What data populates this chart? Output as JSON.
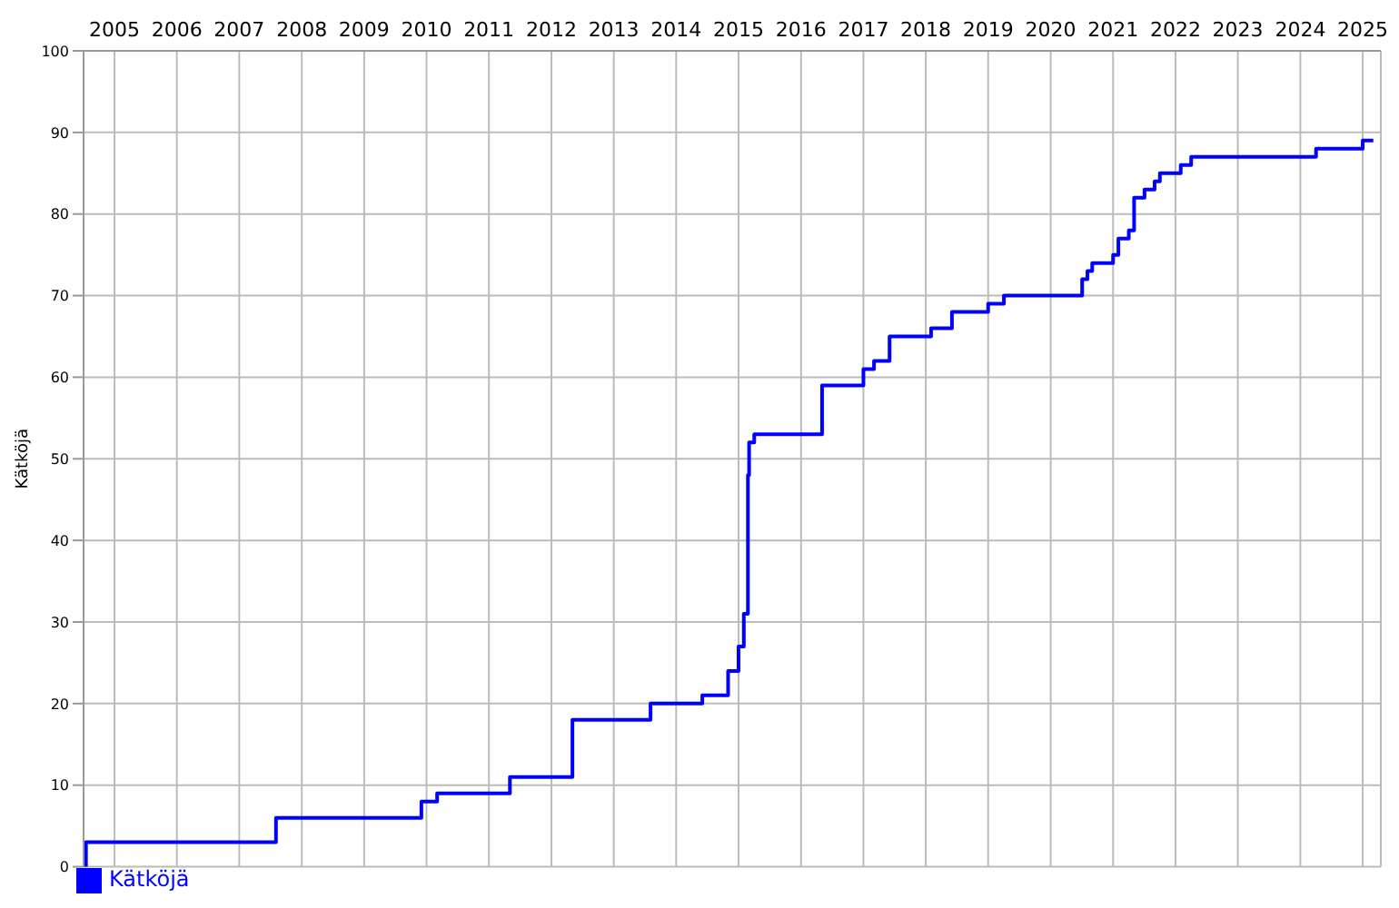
{
  "chart_data": {
    "type": "step",
    "ylabel": "Kätköjä",
    "x": [
      "2005-01-01",
      "2005-01-15",
      "2007-11-01",
      "2008-02-01",
      "2010-04-01",
      "2010-06-01",
      "2010-09-01",
      "2011-09-01",
      "2011-11-01",
      "2012-09-01",
      "2012-11-01",
      "2013-12-01",
      "2014-02-01",
      "2014-11-01",
      "2014-12-01",
      "2015-04-01",
      "2015-05-01",
      "2015-07-01",
      "2015-08-01",
      "2015-08-25",
      "2015-09-01",
      "2015-10-01",
      "2016-07-01",
      "2016-11-01",
      "2017-06-01",
      "2017-07-01",
      "2017-09-01",
      "2017-12-01",
      "2018-07-01",
      "2018-08-01",
      "2018-11-01",
      "2018-12-01",
      "2019-06-01",
      "2019-07-01",
      "2019-10-01",
      "2020-12-01",
      "2021-01-01",
      "2021-02-01",
      "2021-03-01",
      "2021-06-01",
      "2021-07-01",
      "2021-08-01",
      "2021-10-01",
      "2021-11-01",
      "2022-01-01",
      "2022-03-01",
      "2022-04-01",
      "2022-07-01",
      "2022-08-01",
      "2022-10-01",
      "2024-09-01",
      "2024-10-01",
      "2025-06-01",
      "2025-07-01",
      "2025-09-01"
    ],
    "series": [
      {
        "name": "Kätköjä",
        "color": "#0000ff",
        "values": [
          0,
          3,
          3,
          6,
          6,
          8,
          9,
          9,
          11,
          11,
          18,
          18,
          20,
          20,
          21,
          21,
          24,
          27,
          31,
          48,
          52,
          53,
          53,
          59,
          59,
          61,
          62,
          65,
          65,
          66,
          66,
          68,
          68,
          69,
          70,
          70,
          72,
          73,
          74,
          74,
          75,
          77,
          78,
          82,
          83,
          84,
          85,
          85,
          86,
          87,
          87,
          88,
          88,
          89,
          89
        ]
      }
    ],
    "xlim": [
      "2005-01-01",
      "2025-10-15"
    ],
    "xticks": [
      {
        "value": "2005-07-01",
        "label": "2005"
      },
      {
        "value": "2006-07-01",
        "label": "2006"
      },
      {
        "value": "2007-07-01",
        "label": "2007"
      },
      {
        "value": "2008-07-01",
        "label": "2008"
      },
      {
        "value": "2009-07-01",
        "label": "2009"
      },
      {
        "value": "2010-07-01",
        "label": "2010"
      },
      {
        "value": "2011-07-01",
        "label": "2011"
      },
      {
        "value": "2012-07-01",
        "label": "2012"
      },
      {
        "value": "2013-07-01",
        "label": "2013"
      },
      {
        "value": "2014-07-01",
        "label": "2014"
      },
      {
        "value": "2015-07-01",
        "label": "2015"
      },
      {
        "value": "2016-07-01",
        "label": "2016"
      },
      {
        "value": "2017-07-01",
        "label": "2017"
      },
      {
        "value": "2018-07-01",
        "label": "2018"
      },
      {
        "value": "2019-07-01",
        "label": "2019"
      },
      {
        "value": "2020-07-01",
        "label": "2020"
      },
      {
        "value": "2021-07-01",
        "label": "2021"
      },
      {
        "value": "2022-07-01",
        "label": "2022"
      },
      {
        "value": "2023-07-01",
        "label": "2023"
      },
      {
        "value": "2024-07-01",
        "label": "2024"
      },
      {
        "value": "2025-07-01",
        "label": "2025"
      }
    ],
    "ylim": [
      0,
      100
    ],
    "yticks": [
      0,
      10,
      20,
      30,
      40,
      50,
      60,
      70,
      80,
      90,
      100
    ],
    "grid": true,
    "legend": "bottom left",
    "marker": "none",
    "line_style": "solid"
  }
}
